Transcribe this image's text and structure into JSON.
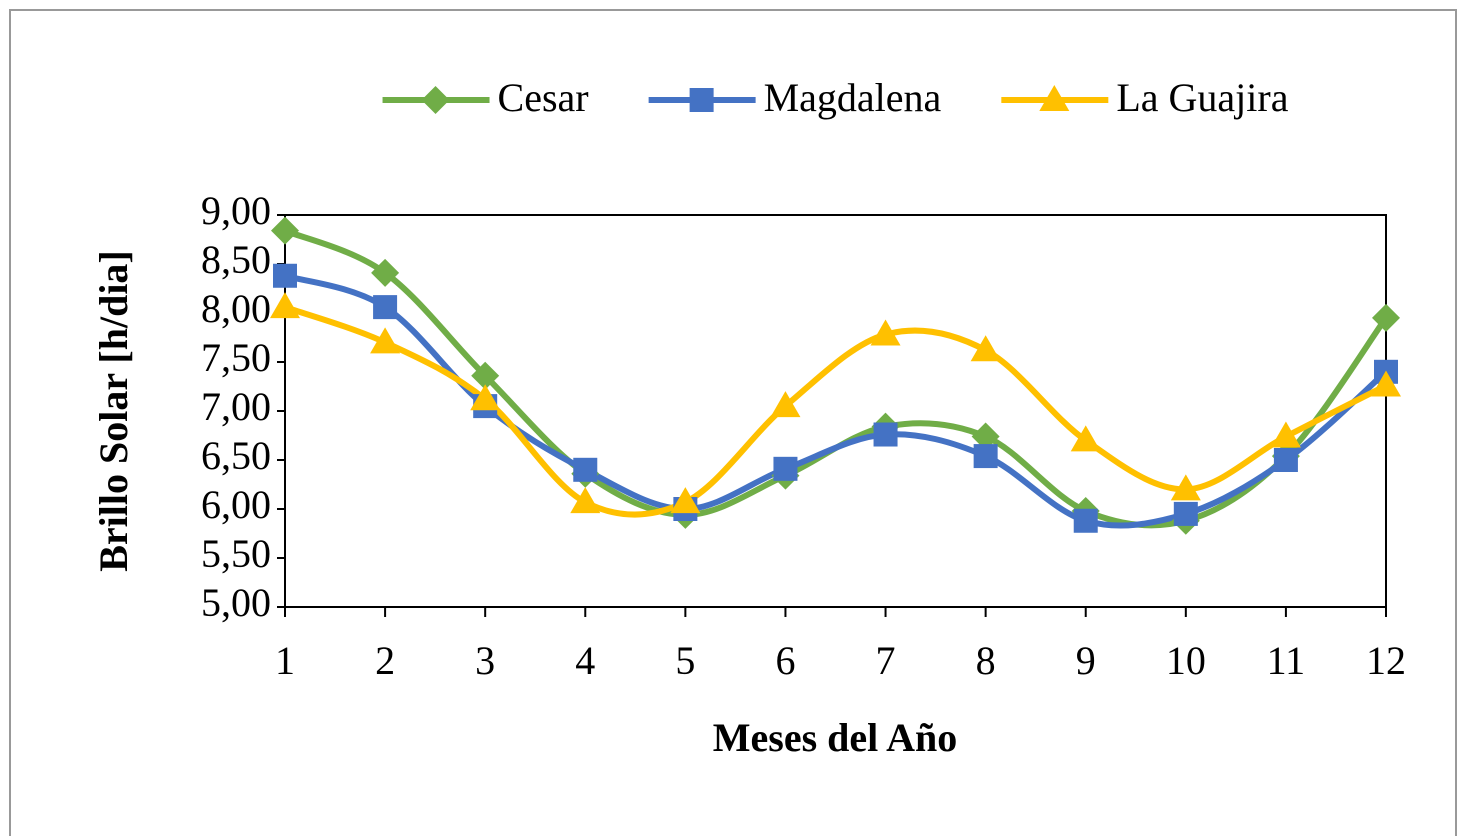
{
  "chart_data": {
    "type": "line",
    "smooth": true,
    "x_label": "Meses del Año",
    "y_label": "Brillo Solar [h/dia]",
    "x": [
      1,
      2,
      3,
      4,
      5,
      6,
      7,
      8,
      9,
      10,
      11,
      12
    ],
    "series": [
      {
        "name": "Cesar",
        "color": "#70ad47",
        "marker": "diamond",
        "values": [
          8.84,
          8.41,
          7.36,
          6.36,
          5.94,
          6.34,
          6.84,
          6.74,
          5.98,
          5.88,
          6.54,
          7.95
        ]
      },
      {
        "name": "Magdalena",
        "color": "#4472c4",
        "marker": "square",
        "values": [
          8.38,
          8.06,
          7.05,
          6.4,
          6.0,
          6.41,
          6.76,
          6.54,
          5.88,
          5.95,
          6.5,
          7.4
        ]
      },
      {
        "name": "La Guajira",
        "color": "#ffc000",
        "marker": "triangle",
        "values": [
          8.06,
          7.7,
          7.12,
          6.07,
          6.07,
          7.05,
          7.78,
          7.62,
          6.7,
          6.2,
          6.74,
          7.26
        ]
      }
    ],
    "xlim": [
      1,
      12
    ],
    "xticks": [
      1,
      2,
      3,
      4,
      5,
      6,
      7,
      8,
      9,
      10,
      11,
      12
    ],
    "ylim": [
      5,
      9
    ],
    "yticks": [
      {
        "value": 5,
        "label": "5,00"
      },
      {
        "value": 5.5,
        "label": "5,50"
      },
      {
        "value": 6,
        "label": "6,00"
      },
      {
        "value": 6.5,
        "label": "6,50"
      },
      {
        "value": 7,
        "label": "7,00"
      },
      {
        "value": 7.5,
        "label": "7,50"
      },
      {
        "value": 8,
        "label": "8,00"
      },
      {
        "value": 8.5,
        "label": "8,50"
      },
      {
        "value": 9,
        "label": "9,00"
      }
    ],
    "grid": false,
    "legend": "top"
  }
}
